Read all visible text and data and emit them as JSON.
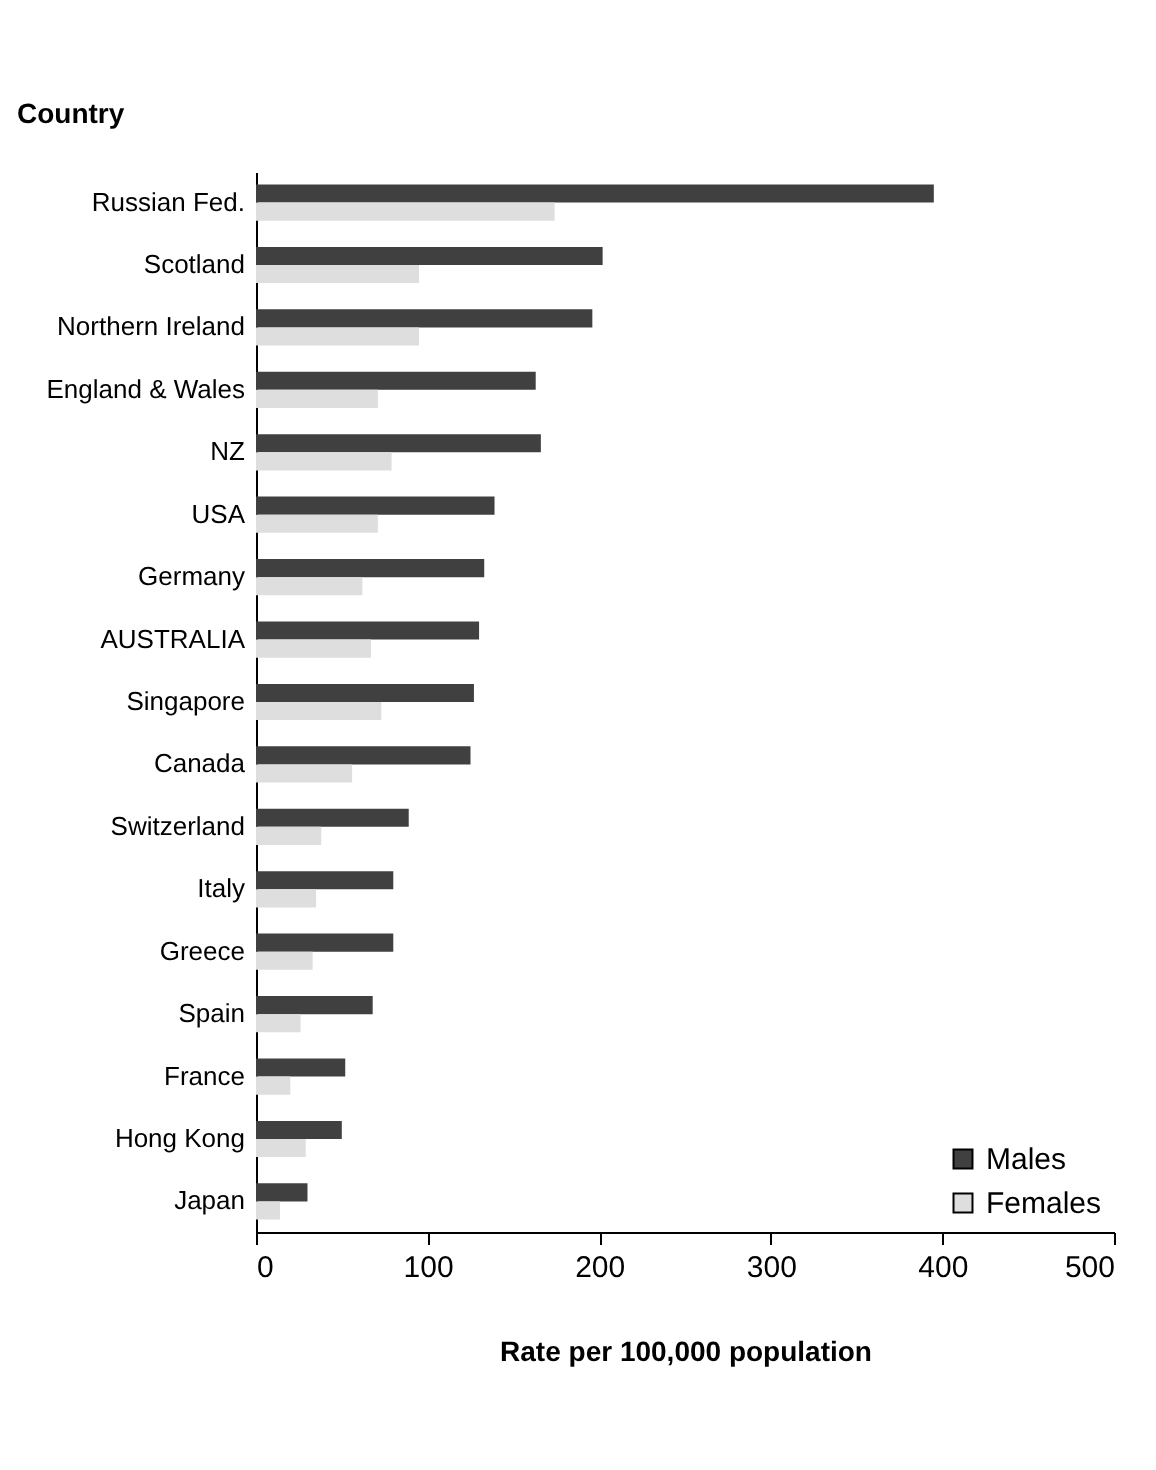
{
  "chart_data": {
    "type": "bar",
    "orientation": "horizontal",
    "ylabel": "Country",
    "xlabel": "Rate per 100,000 population",
    "categories": [
      "Russian Fed.",
      "Scotland",
      "Northern Ireland",
      "England & Wales",
      "NZ",
      "USA",
      "Germany",
      "AUSTRALIA",
      "Singapore",
      "Canada",
      "Switzerland",
      "Italy",
      "Greece",
      "Spain",
      "France",
      "Hong Kong",
      "Japan"
    ],
    "series": [
      {
        "name": "Males",
        "color": "#404040",
        "values": [
          395,
          202,
          196,
          163,
          166,
          139,
          133,
          130,
          127,
          125,
          89,
          80,
          80,
          68,
          52,
          50,
          30
        ]
      },
      {
        "name": "Females",
        "color": "#dedede",
        "values": [
          174,
          95,
          95,
          71,
          79,
          71,
          62,
          67,
          73,
          56,
          38,
          35,
          33,
          26,
          20,
          29,
          14
        ]
      }
    ],
    "xlim": [
      0,
      500
    ],
    "xticks": [
      0,
      100,
      200,
      300,
      400,
      500
    ],
    "grid": false,
    "legend": "bottom right"
  }
}
